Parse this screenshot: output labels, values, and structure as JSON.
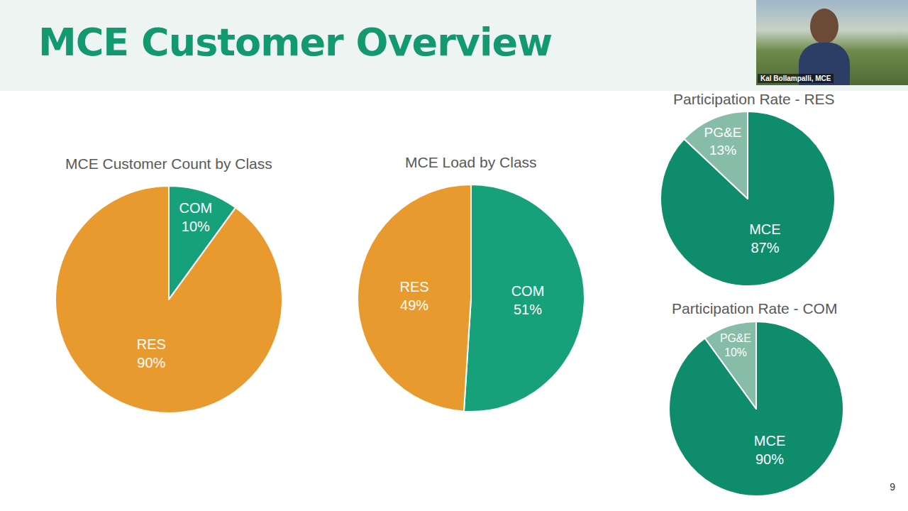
{
  "title": "MCE Customer Overview",
  "speaker": "Kal Bollampalli, MCE",
  "page_number": 9,
  "chart_data": [
    {
      "type": "pie",
      "title": "MCE Customer Count by Class",
      "categories": [
        "COM",
        "RES"
      ],
      "values": [
        10,
        90
      ],
      "value_labels": [
        "10%",
        "90%"
      ],
      "colors": [
        "#16a17a",
        "#e99a2f"
      ],
      "data_labels": true
    },
    {
      "type": "pie",
      "title": "MCE Load by Class",
      "categories": [
        "COM",
        "RES"
      ],
      "values": [
        51,
        49
      ],
      "value_labels": [
        "51%",
        "49%"
      ],
      "colors": [
        "#16a17a",
        "#e99a2f"
      ],
      "data_labels": true
    },
    {
      "type": "pie",
      "title": "Participation Rate - RES",
      "categories": [
        "MCE",
        "PG&E"
      ],
      "values": [
        87,
        13
      ],
      "value_labels": [
        "87%",
        "13%"
      ],
      "colors": [
        "#0f8c6c",
        "#86bca8"
      ],
      "data_labels": true
    },
    {
      "type": "pie",
      "title": "Participation Rate - COM",
      "categories": [
        "MCE",
        "PG&E"
      ],
      "values": [
        90,
        10
      ],
      "value_labels": [
        "90%",
        "10%"
      ],
      "colors": [
        "#0f8c6c",
        "#86bca8"
      ],
      "data_labels": true
    }
  ]
}
